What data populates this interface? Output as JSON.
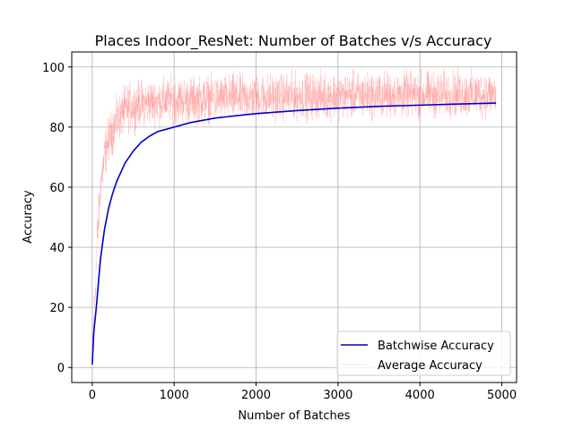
{
  "chart_data": {
    "type": "line",
    "title": "Places Indoor_ResNet: Number of Batches v/s Accuracy",
    "xlabel": "Number of Batches",
    "ylabel": "Accuracy",
    "xlim": [
      -250,
      5180
    ],
    "ylim": [
      -5,
      105
    ],
    "xticks": [
      0,
      1000,
      2000,
      3000,
      4000,
      5000
    ],
    "yticks": [
      0,
      20,
      40,
      60,
      80,
      100
    ],
    "grid": true,
    "legend_position": "lower-right",
    "series": [
      {
        "name": "Batchwise Accuracy",
        "color": "#0000cc",
        "x": [
          0,
          20,
          50,
          100,
          150,
          200,
          250,
          300,
          400,
          500,
          600,
          700,
          800,
          1000,
          1200,
          1500,
          2000,
          2500,
          3000,
          3500,
          4000,
          4500,
          4930
        ],
        "y": [
          1,
          12,
          20,
          36,
          46,
          53,
          58,
          62,
          68,
          72,
          75,
          77,
          78.5,
          80,
          81.5,
          83,
          84.5,
          85.5,
          86.3,
          86.9,
          87.3,
          87.7,
          88
        ]
      },
      {
        "name": "Average Accuracy",
        "color": "#ff8080",
        "style": "noisy",
        "x": [
          0,
          30,
          60,
          100,
          150,
          200,
          300,
          400,
          600,
          1000,
          2000,
          3000,
          4000,
          4930
        ],
        "y": [
          5,
          22,
          42,
          60,
          70,
          76,
          82,
          86,
          88,
          89,
          90,
          90.5,
          90.8,
          91
        ],
        "spread": 8
      }
    ]
  }
}
